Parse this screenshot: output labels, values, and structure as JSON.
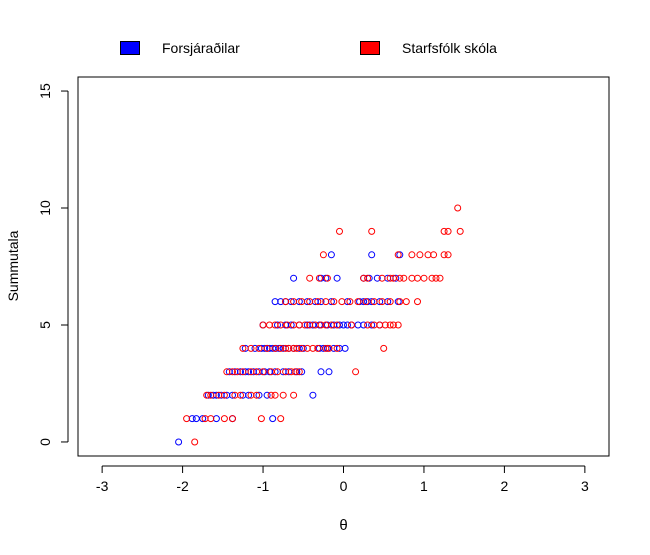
{
  "chart_data": {
    "type": "scatter",
    "xlabel": "θ",
    "ylabel": "Summutala",
    "xlim": [
      -3.3,
      3.3
    ],
    "ylim": [
      -0.6,
      15.6
    ],
    "x_ticks": [
      "-3",
      "-2",
      "-1",
      "0",
      "1",
      "2",
      "3"
    ],
    "y_ticks": [
      "0",
      "5",
      "10",
      "15"
    ],
    "legend_position": "top",
    "grid": false,
    "series": [
      {
        "name": "Forsjáraðilar",
        "color": "#0000ff",
        "points": [
          [
            -2.05,
            0
          ],
          [
            -1.88,
            1
          ],
          [
            -1.83,
            1
          ],
          [
            -1.75,
            1
          ],
          [
            -1.58,
            1
          ],
          [
            -1.38,
            1
          ],
          [
            -0.88,
            1
          ],
          [
            -1.68,
            2
          ],
          [
            -1.62,
            2
          ],
          [
            -1.58,
            2
          ],
          [
            -1.52,
            2
          ],
          [
            -1.45,
            2
          ],
          [
            -1.38,
            2
          ],
          [
            -1.25,
            2
          ],
          [
            -1.18,
            2
          ],
          [
            -1.05,
            2
          ],
          [
            -0.95,
            2
          ],
          [
            -0.38,
            2
          ],
          [
            -1.42,
            3
          ],
          [
            -1.35,
            3
          ],
          [
            -1.28,
            3
          ],
          [
            -1.22,
            3
          ],
          [
            -1.18,
            3
          ],
          [
            -1.12,
            3
          ],
          [
            -1.05,
            3
          ],
          [
            -0.98,
            3
          ],
          [
            -0.92,
            3
          ],
          [
            -0.85,
            3
          ],
          [
            -0.75,
            3
          ],
          [
            -0.68,
            3
          ],
          [
            -0.58,
            3
          ],
          [
            -0.52,
            3
          ],
          [
            -0.28,
            3
          ],
          [
            -0.18,
            3
          ],
          [
            -1.22,
            4
          ],
          [
            -1.1,
            4
          ],
          [
            -1.02,
            4
          ],
          [
            -0.98,
            4
          ],
          [
            -0.95,
            4
          ],
          [
            -0.92,
            4
          ],
          [
            -0.88,
            4
          ],
          [
            -0.84,
            4
          ],
          [
            -0.8,
            4
          ],
          [
            -0.75,
            4
          ],
          [
            -0.68,
            4
          ],
          [
            -0.62,
            4
          ],
          [
            -0.55,
            4
          ],
          [
            -0.5,
            4
          ],
          [
            -0.3,
            4
          ],
          [
            -0.25,
            4
          ],
          [
            -0.2,
            4
          ],
          [
            -0.12,
            4
          ],
          [
            -0.05,
            4
          ],
          [
            0.02,
            4
          ],
          [
            -1.0,
            5
          ],
          [
            -0.82,
            5
          ],
          [
            -0.72,
            5
          ],
          [
            -0.65,
            5
          ],
          [
            -0.55,
            5
          ],
          [
            -0.45,
            5
          ],
          [
            -0.38,
            5
          ],
          [
            -0.3,
            5
          ],
          [
            -0.2,
            5
          ],
          [
            -0.12,
            5
          ],
          [
            -0.05,
            5
          ],
          [
            0.0,
            5
          ],
          [
            0.05,
            5
          ],
          [
            0.1,
            5
          ],
          [
            0.18,
            5
          ],
          [
            0.25,
            5
          ],
          [
            0.35,
            5
          ],
          [
            0.45,
            5
          ],
          [
            -0.85,
            6
          ],
          [
            -0.78,
            6
          ],
          [
            -0.72,
            6
          ],
          [
            -0.65,
            6
          ],
          [
            -0.55,
            6
          ],
          [
            -0.45,
            6
          ],
          [
            -0.35,
            6
          ],
          [
            -0.28,
            6
          ],
          [
            -0.15,
            6
          ],
          [
            0.05,
            6
          ],
          [
            0.2,
            6
          ],
          [
            0.25,
            6
          ],
          [
            0.3,
            6
          ],
          [
            0.35,
            6
          ],
          [
            0.45,
            6
          ],
          [
            0.55,
            6
          ],
          [
            0.68,
            6
          ],
          [
            -0.62,
            7
          ],
          [
            -0.28,
            7
          ],
          [
            -0.22,
            7
          ],
          [
            -0.08,
            7
          ],
          [
            0.25,
            7
          ],
          [
            0.32,
            7
          ],
          [
            0.42,
            7
          ],
          [
            0.55,
            7
          ],
          [
            0.65,
            7
          ],
          [
            -0.15,
            8
          ],
          [
            0.35,
            8
          ],
          [
            0.7,
            8
          ]
        ]
      },
      {
        "name": "Starfsfólk skóla",
        "color": "#ff0000",
        "points": [
          [
            -1.85,
            0
          ],
          [
            -1.95,
            1
          ],
          [
            -1.72,
            1
          ],
          [
            -1.65,
            1
          ],
          [
            -1.48,
            1
          ],
          [
            -1.38,
            1
          ],
          [
            -1.02,
            1
          ],
          [
            -0.78,
            1
          ],
          [
            -1.7,
            2
          ],
          [
            -1.65,
            2
          ],
          [
            -1.55,
            2
          ],
          [
            -1.48,
            2
          ],
          [
            -1.35,
            2
          ],
          [
            -1.28,
            2
          ],
          [
            -1.15,
            2
          ],
          [
            -1.08,
            2
          ],
          [
            -0.9,
            2
          ],
          [
            -0.85,
            2
          ],
          [
            -0.75,
            2
          ],
          [
            -0.62,
            2
          ],
          [
            -1.45,
            3
          ],
          [
            -1.38,
            3
          ],
          [
            -1.32,
            3
          ],
          [
            -1.25,
            3
          ],
          [
            -1.15,
            3
          ],
          [
            -1.08,
            3
          ],
          [
            -1.0,
            3
          ],
          [
            -0.9,
            3
          ],
          [
            -0.82,
            3
          ],
          [
            -0.72,
            3
          ],
          [
            -0.65,
            3
          ],
          [
            -0.6,
            3
          ],
          [
            -0.55,
            3
          ],
          [
            0.15,
            3
          ],
          [
            -1.25,
            4
          ],
          [
            -1.15,
            4
          ],
          [
            -1.05,
            4
          ],
          [
            -0.95,
            4
          ],
          [
            -0.85,
            4
          ],
          [
            -0.78,
            4
          ],
          [
            -0.72,
            4
          ],
          [
            -0.68,
            4
          ],
          [
            -0.62,
            4
          ],
          [
            -0.58,
            4
          ],
          [
            -0.52,
            4
          ],
          [
            -0.45,
            4
          ],
          [
            -0.38,
            4
          ],
          [
            -0.32,
            4
          ],
          [
            -0.22,
            4
          ],
          [
            -0.18,
            4
          ],
          [
            -0.08,
            4
          ],
          [
            0.5,
            4
          ],
          [
            -1.0,
            5
          ],
          [
            -0.92,
            5
          ],
          [
            -0.85,
            5
          ],
          [
            -0.78,
            5
          ],
          [
            -0.7,
            5
          ],
          [
            -0.62,
            5
          ],
          [
            -0.55,
            5
          ],
          [
            -0.48,
            5
          ],
          [
            -0.42,
            5
          ],
          [
            -0.35,
            5
          ],
          [
            -0.28,
            5
          ],
          [
            -0.22,
            5
          ],
          [
            -0.15,
            5
          ],
          [
            -0.08,
            5
          ],
          [
            0.1,
            5
          ],
          [
            0.3,
            5
          ],
          [
            0.38,
            5
          ],
          [
            0.45,
            5
          ],
          [
            0.52,
            5
          ],
          [
            0.58,
            5
          ],
          [
            0.62,
            5
          ],
          [
            0.68,
            5
          ],
          [
            -0.72,
            6
          ],
          [
            -0.62,
            6
          ],
          [
            -0.52,
            6
          ],
          [
            -0.42,
            6
          ],
          [
            -0.32,
            6
          ],
          [
            -0.22,
            6
          ],
          [
            -0.12,
            6
          ],
          [
            -0.02,
            6
          ],
          [
            0.08,
            6
          ],
          [
            0.18,
            6
          ],
          [
            0.28,
            6
          ],
          [
            0.38,
            6
          ],
          [
            0.48,
            6
          ],
          [
            0.58,
            6
          ],
          [
            0.7,
            6
          ],
          [
            0.78,
            6
          ],
          [
            0.92,
            6
          ],
          [
            -0.42,
            7
          ],
          [
            -0.3,
            7
          ],
          [
            -0.2,
            7
          ],
          [
            0.25,
            7
          ],
          [
            0.3,
            7
          ],
          [
            0.48,
            7
          ],
          [
            0.58,
            7
          ],
          [
            0.62,
            7
          ],
          [
            0.7,
            7
          ],
          [
            0.75,
            7
          ],
          [
            0.85,
            7
          ],
          [
            0.92,
            7
          ],
          [
            1.0,
            7
          ],
          [
            1.1,
            7
          ],
          [
            1.15,
            7
          ],
          [
            1.2,
            7
          ],
          [
            -0.25,
            8
          ],
          [
            0.68,
            8
          ],
          [
            0.85,
            8
          ],
          [
            0.95,
            8
          ],
          [
            1.05,
            8
          ],
          [
            1.12,
            8
          ],
          [
            1.25,
            8
          ],
          [
            1.3,
            8
          ],
          [
            -0.05,
            9
          ],
          [
            0.35,
            9
          ],
          [
            1.25,
            9
          ],
          [
            1.3,
            9
          ],
          [
            1.45,
            9
          ],
          [
            1.42,
            10
          ]
        ]
      }
    ]
  }
}
